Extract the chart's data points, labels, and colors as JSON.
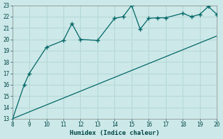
{
  "xlabel": "Humidex (Indice chaleur)",
  "ylabel": "",
  "background_color": "#cce8e8",
  "grid_color": "#b8d8d8",
  "line_color": "#006666",
  "xlim": [
    8,
    20
  ],
  "ylim": [
    13,
    23
  ],
  "xticks": [
    8,
    9,
    10,
    11,
    12,
    13,
    14,
    15,
    16,
    17,
    18,
    19,
    20
  ],
  "yticks": [
    13,
    14,
    15,
    16,
    17,
    18,
    19,
    20,
    21,
    22,
    23
  ],
  "curve1_x": [
    8,
    8.7,
    9,
    10,
    11,
    11.5,
    12,
    13,
    14,
    14.5,
    15,
    15.5,
    16,
    16.5,
    17,
    18,
    18.5,
    19,
    19.5,
    20
  ],
  "curve1_y": [
    12.9,
    16.0,
    17.0,
    19.3,
    19.9,
    21.4,
    20.0,
    19.9,
    21.85,
    22.0,
    23.0,
    20.9,
    21.85,
    21.9,
    21.9,
    22.3,
    22.0,
    22.2,
    22.9,
    22.2
  ],
  "curve2_x": [
    8,
    20
  ],
  "curve2_y": [
    13,
    20.3
  ],
  "figsize": [
    3.2,
    2.0
  ],
  "dpi": 100
}
